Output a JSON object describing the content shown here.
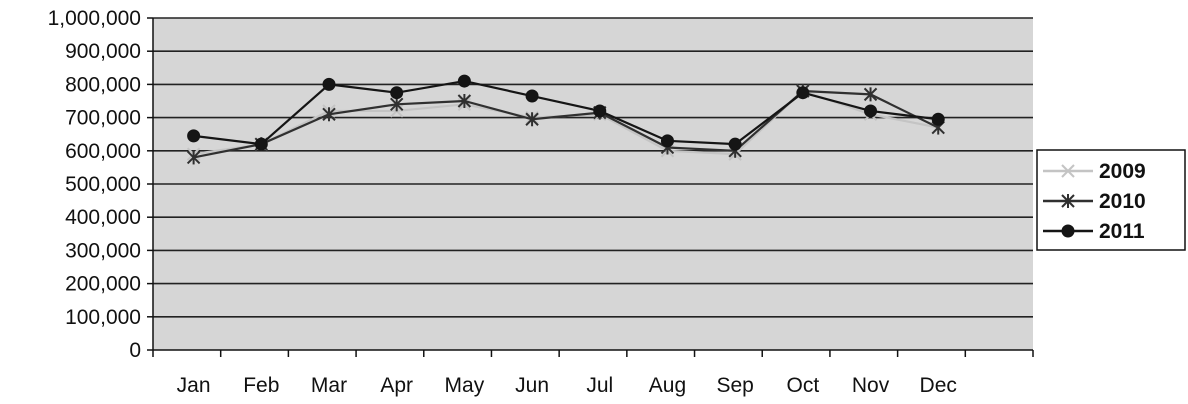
{
  "chart_data": {
    "type": "line",
    "categories": [
      "Jan",
      "Feb",
      "Mar",
      "Apr",
      "May",
      "Jun",
      "Jul",
      "Aug",
      "Sep",
      "Oct",
      "Nov",
      "Dec"
    ],
    "y_ticks": [
      "0",
      "100,000",
      "200,000",
      "300,000",
      "400,000",
      "500,000",
      "600,000",
      "700,000",
      "800,000",
      "900,000",
      "1,000,000"
    ],
    "ylim": [
      0,
      1000000
    ],
    "grid": "horizontal",
    "legend_position": "right",
    "title": "",
    "xlabel": "",
    "ylabel": "",
    "series": [
      {
        "name": "2009",
        "marker": "cross",
        "color": "#c4c4c4",
        "values": [
          590000,
          620000,
          720000,
          720000,
          740000,
          700000,
          710000,
          600000,
          590000,
          780000,
          710000,
          670000
        ]
      },
      {
        "name": "2010",
        "marker": "asterisk",
        "color": "#303030",
        "values": [
          580000,
          620000,
          710000,
          740000,
          750000,
          695000,
          715000,
          610000,
          600000,
          780000,
          770000,
          670000
        ]
      },
      {
        "name": "2011",
        "marker": "circle",
        "color": "#151515",
        "values": [
          645000,
          620000,
          800000,
          775000,
          810000,
          765000,
          720000,
          630000,
          620000,
          775000,
          720000,
          695000
        ]
      }
    ]
  }
}
